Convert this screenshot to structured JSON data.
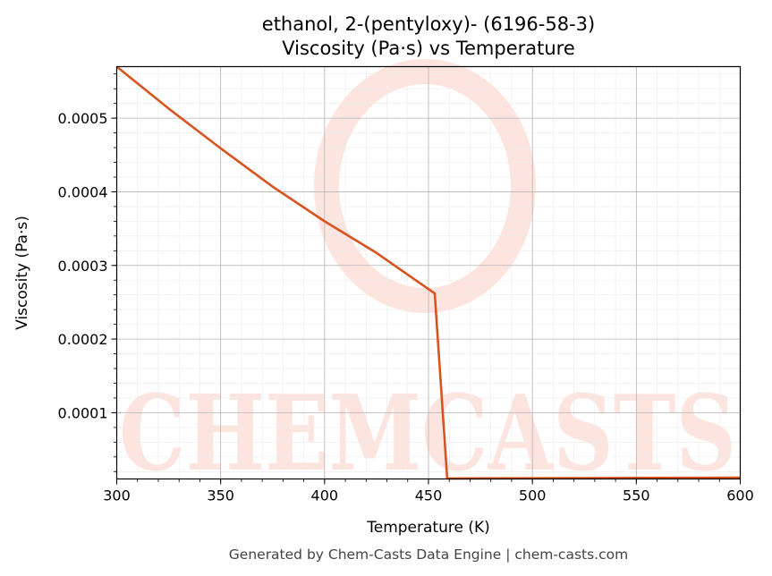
{
  "chart_data": {
    "type": "line",
    "title": "ethanol, 2-(pentyloxy)- (6196-58-3)",
    "subtitle": "Viscosity (Pa·s) vs Temperature",
    "xlabel": "Temperature (K)",
    "ylabel": "Viscosity (Pa·s)",
    "xlim": [
      300,
      600
    ],
    "ylim": [
      1e-05,
      0.00057
    ],
    "xticks": [
      300,
      350,
      400,
      450,
      500,
      550,
      600
    ],
    "yticks": [
      0.0001,
      0.0002,
      0.0003,
      0.0004,
      0.0005
    ],
    "ytick_labels": [
      "0.0001",
      "0.0002",
      "0.0003",
      "0.0004",
      "0.0005"
    ],
    "grid": true,
    "legend": "none",
    "series": [
      {
        "color": "#d9531e",
        "x": [
          300,
          325,
          350,
          375,
          400,
          425,
          453,
          459,
          475,
          500,
          525,
          550,
          575,
          600
        ],
        "y": [
          0.00057,
          0.000513,
          0.000459,
          0.000407,
          0.00036,
          0.000317,
          0.000262,
          1.07e-05,
          1.08e-05,
          1.1e-05,
          1.12e-05,
          1.14e-05,
          1.16e-05,
          1.18e-05
        ]
      }
    ]
  },
  "watermark": {
    "text": "CHEMCASTS"
  },
  "footer": "Generated by Chem-Casts Data Engine | chem-casts.com"
}
